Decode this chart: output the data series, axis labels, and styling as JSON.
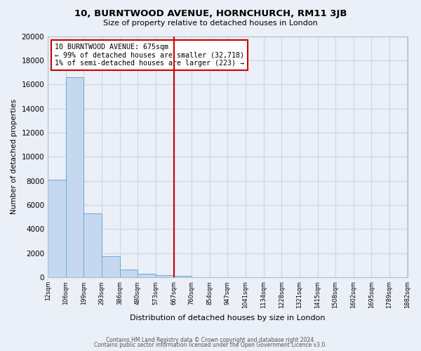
{
  "title": "10, BURNTWOOD AVENUE, HORNCHURCH, RM11 3JB",
  "subtitle": "Size of property relative to detached houses in London",
  "xlabel": "Distribution of detached houses by size in London",
  "ylabel": "Number of detached properties",
  "bar_edges": [
    12,
    106,
    199,
    293,
    386,
    480,
    573,
    667,
    760,
    854,
    947,
    1041,
    1134,
    1228,
    1321,
    1415,
    1508,
    1602,
    1695,
    1789,
    1882
  ],
  "bar_heights": [
    8100,
    16600,
    5300,
    1750,
    650,
    300,
    175,
    100,
    0,
    0,
    0,
    0,
    0,
    0,
    0,
    0,
    0,
    0,
    0,
    0
  ],
  "bar_color": "#c5d8ef",
  "bar_edge_color": "#6aaad4",
  "vline_x": 667,
  "vline_color": "#cc0000",
  "annotation_text": "10 BURNTWOOD AVENUE: 675sqm\n← 99% of detached houses are smaller (32,718)\n1% of semi-detached houses are larger (223) →",
  "annotation_box_color": "white",
  "annotation_box_edge_color": "#cc0000",
  "ylim": [
    0,
    20000
  ],
  "yticks": [
    0,
    2000,
    4000,
    6000,
    8000,
    10000,
    12000,
    14000,
    16000,
    18000,
    20000
  ],
  "xtick_labels": [
    "12sqm",
    "106sqm",
    "199sqm",
    "293sqm",
    "386sqm",
    "480sqm",
    "573sqm",
    "667sqm",
    "760sqm",
    "854sqm",
    "947sqm",
    "1041sqm",
    "1134sqm",
    "1228sqm",
    "1321sqm",
    "1415sqm",
    "1508sqm",
    "1602sqm",
    "1695sqm",
    "1789sqm",
    "1882sqm"
  ],
  "grid_color": "#ccd4e4",
  "bg_color": "#eaeff8",
  "footer_line1": "Contains HM Land Registry data © Crown copyright and database right 2024.",
  "footer_line2": "Contains public sector information licensed under the Open Government Licence v3.0."
}
